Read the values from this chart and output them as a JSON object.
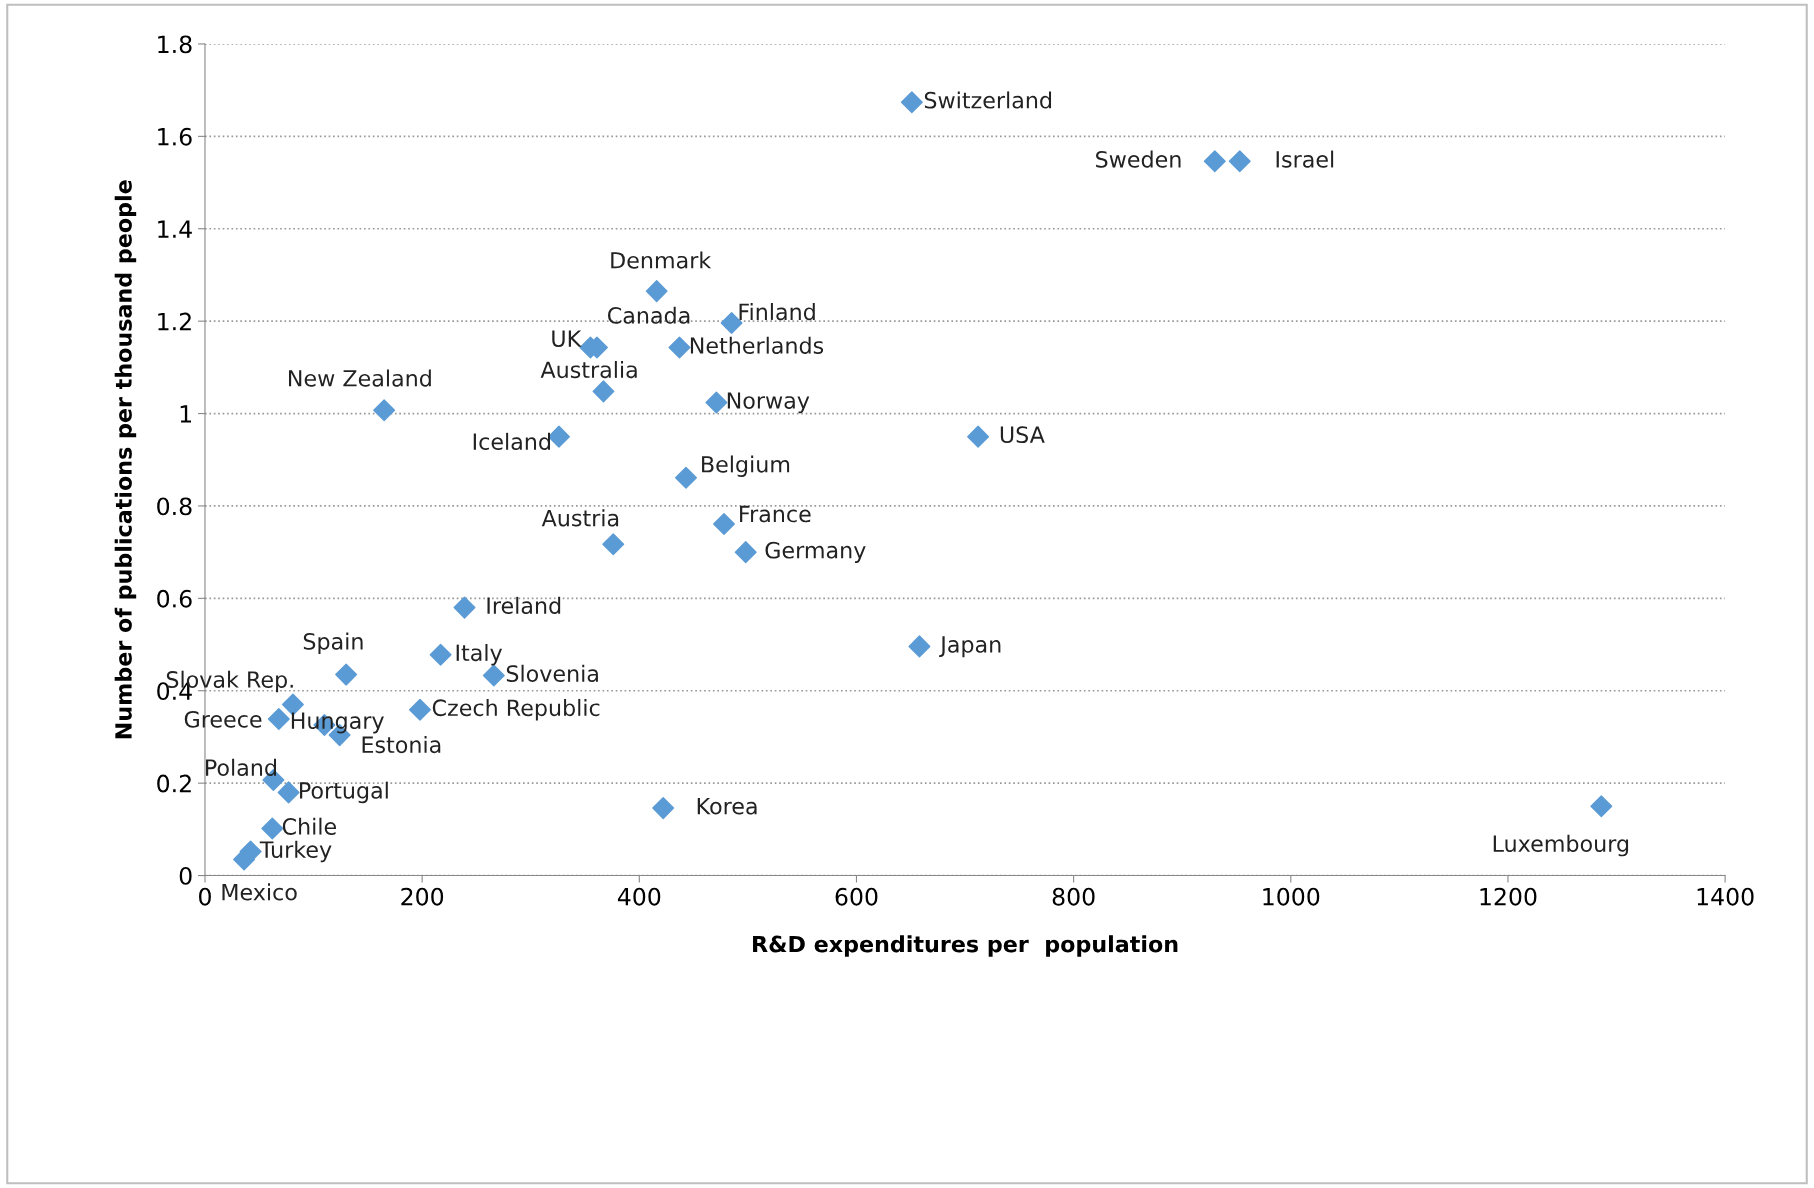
{
  "chart_data": {
    "type": "scatter",
    "xlabel": "R&D expenditures per  population",
    "ylabel": "Number of publications per thousand people",
    "series": [
      {
        "color": "#5b9bd5",
        "x": [
          651,
          930,
          953,
          416,
          485,
          361,
          355,
          437,
          367,
          471,
          165,
          326,
          712,
          443,
          478,
          376,
          498,
          239,
          658,
          217,
          130,
          266,
          81,
          198,
          68,
          110,
          124,
          63,
          77,
          422,
          1286,
          62,
          42,
          36
        ],
        "values": [
          1.674,
          1.546,
          1.546,
          1.265,
          1.196,
          1.143,
          1.143,
          1.143,
          1.048,
          1.024,
          1.007,
          0.95,
          0.95,
          0.861,
          0.761,
          0.717,
          0.7,
          0.58,
          0.496,
          0.478,
          0.435,
          0.433,
          0.37,
          0.359,
          0.339,
          0.326,
          0.304,
          0.207,
          0.18,
          0.146,
          0.15,
          0.102,
          0.052,
          0.035
        ]
      }
    ],
    "annotations": [
      {
        "text": "Switzerland",
        "x": 651,
        "y": 1.674
      },
      {
        "text": "Sweden",
        "x": 930,
        "y": 1.546
      },
      {
        "text": "Israel",
        "x": 953,
        "y": 1.546
      },
      {
        "text": "Denmark",
        "x": 416,
        "y": 1.265
      },
      {
        "text": "Finland",
        "x": 485,
        "y": 1.196
      },
      {
        "text": "Canada",
        "x": 361,
        "y": 1.143
      },
      {
        "text": "UK",
        "x": 355,
        "y": 1.143
      },
      {
        "text": "Netherlands",
        "x": 437,
        "y": 1.143
      },
      {
        "text": "Australia",
        "x": 367,
        "y": 1.048
      },
      {
        "text": "Norway",
        "x": 471,
        "y": 1.024
      },
      {
        "text": "New Zealand",
        "x": 165,
        "y": 1.007
      },
      {
        "text": "Iceland",
        "x": 326,
        "y": 0.95
      },
      {
        "text": "USA",
        "x": 712,
        "y": 0.95
      },
      {
        "text": "Belgium",
        "x": 443,
        "y": 0.861
      },
      {
        "text": "France",
        "x": 478,
        "y": 0.761
      },
      {
        "text": "Austria",
        "x": 376,
        "y": 0.717
      },
      {
        "text": "Germany",
        "x": 498,
        "y": 0.7
      },
      {
        "text": "Ireland",
        "x": 239,
        "y": 0.58
      },
      {
        "text": "Japan",
        "x": 658,
        "y": 0.496
      },
      {
        "text": "Italy",
        "x": 217,
        "y": 0.478
      },
      {
        "text": "Spain",
        "x": 130,
        "y": 0.435
      },
      {
        "text": "Slovenia",
        "x": 266,
        "y": 0.433
      },
      {
        "text": "Slovak Rep.",
        "x": 81,
        "y": 0.37
      },
      {
        "text": "Czech Republic",
        "x": 198,
        "y": 0.359
      },
      {
        "text": "Greece",
        "x": 68,
        "y": 0.339
      },
      {
        "text": "Hungary",
        "x": 110,
        "y": 0.326
      },
      {
        "text": "Estonia",
        "x": 124,
        "y": 0.304
      },
      {
        "text": "Poland",
        "x": 63,
        "y": 0.207
      },
      {
        "text": "Portugal",
        "x": 77,
        "y": 0.18
      },
      {
        "text": "Korea",
        "x": 422,
        "y": 0.146
      },
      {
        "text": "Luxembourg",
        "x": 1286,
        "y": 0.15
      },
      {
        "text": "Chile",
        "x": 62,
        "y": 0.102
      },
      {
        "text": "Turkey",
        "x": 42,
        "y": 0.052
      },
      {
        "text": "Mexico",
        "x": 36,
        "y": 0.035
      }
    ],
    "xlim": [
      0,
      1400
    ],
    "xticks": [
      0,
      200,
      400,
      600,
      800,
      1000,
      1200,
      1400
    ],
    "ylim": [
      0,
      1.8
    ],
    "yticks": [
      0,
      0.2,
      0.4,
      0.6,
      0.8,
      1,
      1.2,
      1.4,
      1.6,
      1.8
    ],
    "grid": "y",
    "marker": "diamond",
    "legend": false
  }
}
